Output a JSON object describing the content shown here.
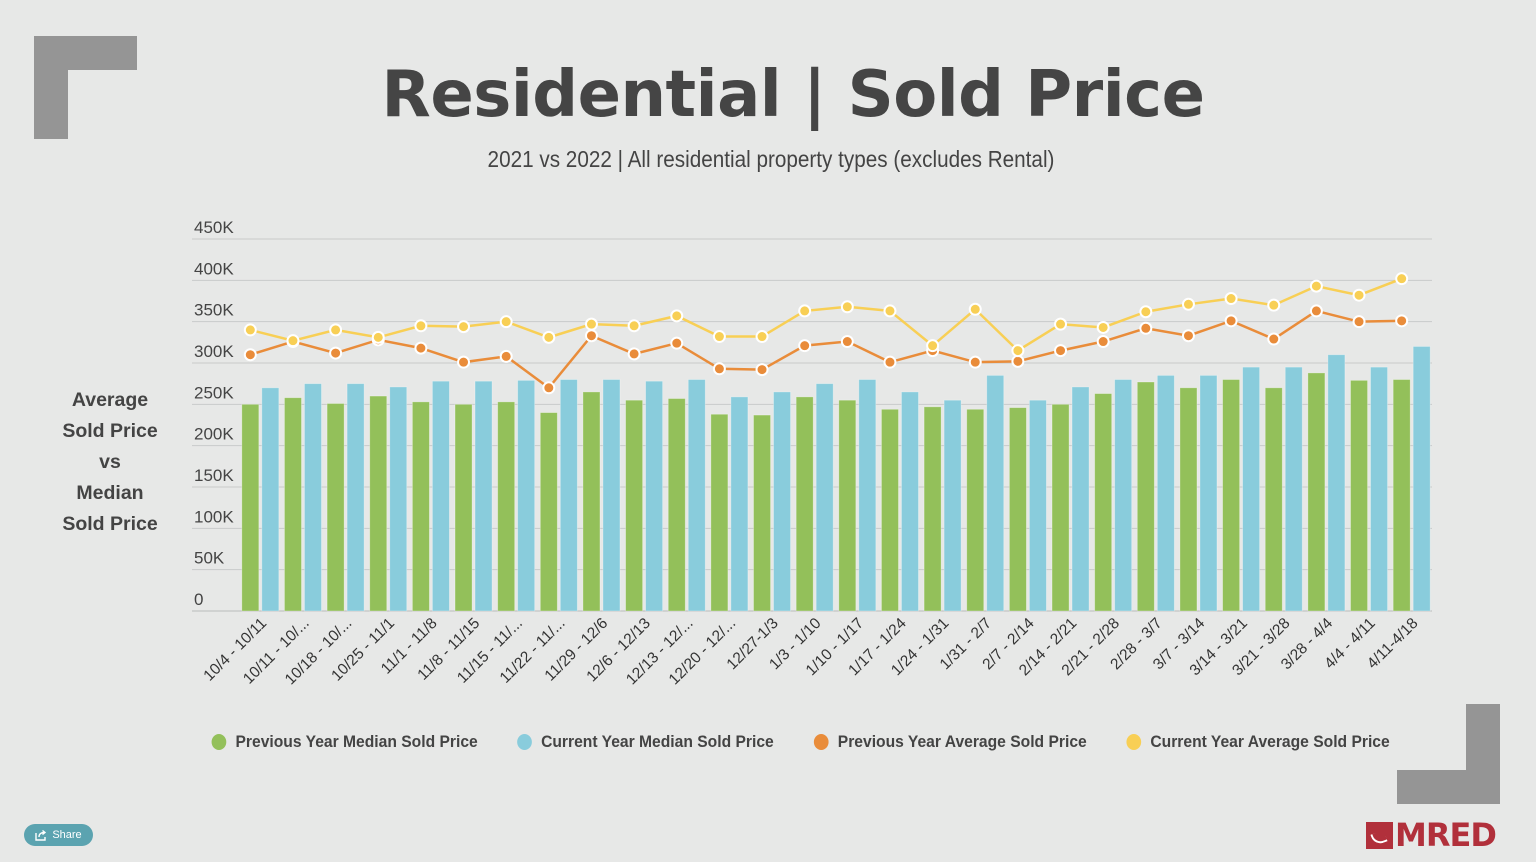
{
  "title": "Residential | Sold Price",
  "subtitle": "2021 vs 2022 | All residential property types (excludes Rental)",
  "side_label": [
    "Average",
    "Sold Price",
    "vs",
    "Median",
    "Sold Price"
  ],
  "share_button": {
    "label": "Share",
    "icon": "share-icon"
  },
  "logo": {
    "text": "MRED"
  },
  "colors": {
    "prev_median": "#93c05a",
    "curr_median": "#89ccdc",
    "prev_avg": "#e98c3a",
    "curr_avg": "#f8cf55",
    "grid": "#c9caca",
    "bracket": "#959595",
    "brand": "#b1303b"
  },
  "chart_data": {
    "type": "bar",
    "title": "Residential | Sold Price",
    "subtitle": "2021 vs 2022 | All residential property types (excludes Rental)",
    "xlabel": "",
    "ylabel": "Average Sold Price vs Median Sold Price",
    "ylim": [
      0,
      450000
    ],
    "yticks": [
      0,
      50000,
      100000,
      150000,
      200000,
      250000,
      300000,
      350000,
      400000,
      450000
    ],
    "ytick_labels": [
      "0",
      "50K",
      "100K",
      "150K",
      "200K",
      "250K",
      "300K",
      "350K",
      "400K",
      "450K"
    ],
    "grid": true,
    "legend_position": "bottom",
    "categories": [
      "10/4 - 10/11",
      "10/11 - 10/...",
      "10/18 - 10/...",
      "10/25 - 11/1",
      "11/1 - 11/8",
      "11/8 - 11/15",
      "11/15 - 11/...",
      "11/22 - 11/...",
      "11/29 - 12/6",
      "12/6 - 12/13",
      "12/13 - 12/...",
      "12/20 - 12/...",
      "12/27-1/3",
      "1/3 - 1/10",
      "1/10 - 1/17",
      "1/17 - 1/24",
      "1/24 - 1/31",
      "1/31 - 2/7",
      "2/7 - 2/14",
      "2/14 - 2/21",
      "2/21 - 2/28",
      "2/28 - 3/7",
      "3/7 - 3/14",
      "3/14 - 3/21",
      "3/21 - 3/28",
      "3/28 - 4/4",
      "4/4 - 4/11",
      "4/11-4/18"
    ],
    "series": [
      {
        "name": "Previous Year Median Sold Price",
        "type": "bar",
        "color_key": "prev_median",
        "values": [
          250000,
          258000,
          251000,
          260000,
          253000,
          250000,
          253000,
          240000,
          265000,
          255000,
          257000,
          238000,
          237000,
          259000,
          255000,
          244000,
          247000,
          244000,
          246000,
          250000,
          263000,
          277000,
          270000,
          280000,
          270000,
          288000,
          279000,
          280000
        ]
      },
      {
        "name": "Current Year Median Sold Price",
        "type": "bar",
        "color_key": "curr_median",
        "values": [
          270000,
          275000,
          275000,
          271000,
          278000,
          278000,
          279000,
          280000,
          280000,
          278000,
          280000,
          259000,
          265000,
          275000,
          280000,
          265000,
          255000,
          285000,
          255000,
          271000,
          280000,
          285000,
          285000,
          295000,
          295000,
          310000,
          295000,
          320000
        ]
      },
      {
        "name": "Previous Year Average Sold Price",
        "type": "line",
        "color_key": "prev_avg",
        "values": [
          310000,
          326000,
          312000,
          328000,
          318000,
          301000,
          308000,
          270000,
          333000,
          311000,
          324000,
          293000,
          292000,
          321000,
          326000,
          301000,
          315000,
          301000,
          302000,
          315000,
          326000,
          342000,
          333000,
          351000,
          329000,
          363000,
          350000,
          351000
        ]
      },
      {
        "name": "Current Year Average Sold Price",
        "type": "line",
        "color_key": "curr_avg",
        "values": [
          340000,
          327000,
          340000,
          331000,
          345000,
          344000,
          350000,
          331000,
          347000,
          345000,
          357000,
          332000,
          332000,
          363000,
          368000,
          363000,
          321000,
          365000,
          315000,
          347000,
          343000,
          362000,
          371000,
          378000,
          370000,
          393000,
          382000,
          402000
        ]
      }
    ]
  }
}
